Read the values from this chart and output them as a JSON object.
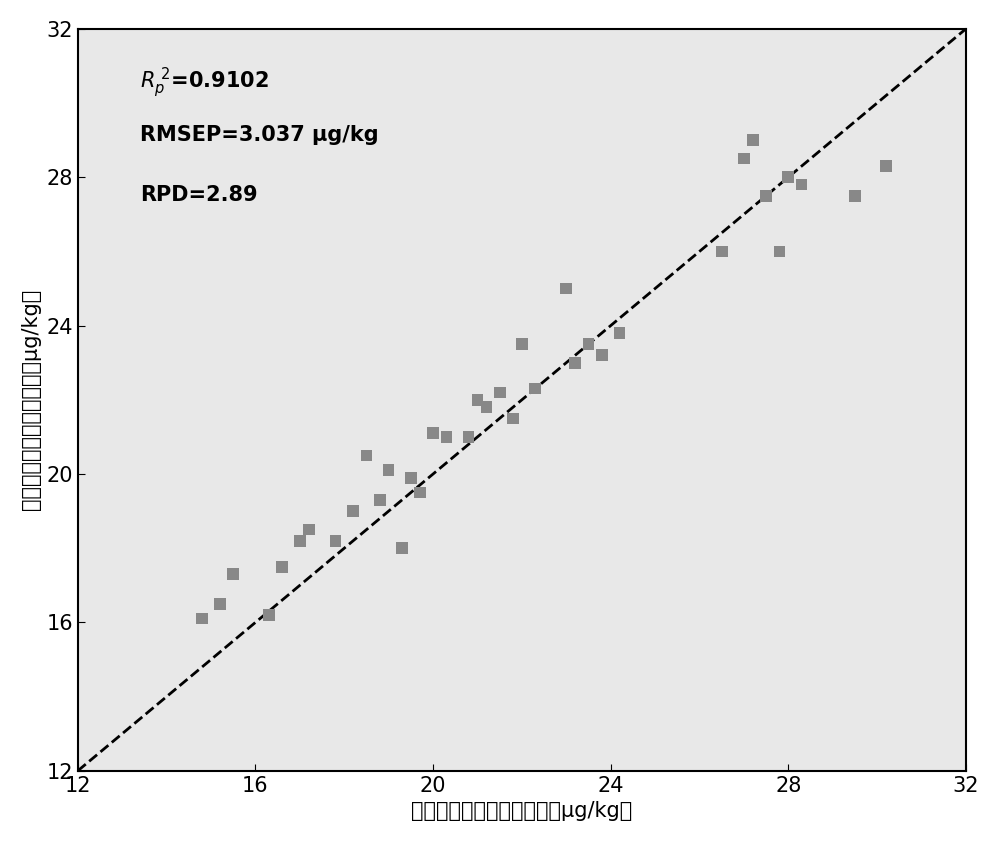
{
  "scatter_x": [
    14.8,
    15.2,
    15.5,
    16.3,
    16.6,
    17.0,
    17.2,
    17.8,
    18.2,
    18.5,
    18.8,
    19.0,
    19.3,
    19.5,
    19.7,
    20.0,
    20.3,
    20.8,
    21.0,
    21.2,
    21.5,
    21.8,
    22.0,
    22.3,
    23.0,
    23.2,
    23.5,
    23.8,
    24.2,
    26.5,
    27.0,
    27.2,
    27.5,
    27.8,
    28.0,
    28.3,
    29.5,
    30.2
  ],
  "scatter_y": [
    16.1,
    16.5,
    17.3,
    16.2,
    17.5,
    18.2,
    18.5,
    18.2,
    19.0,
    20.5,
    19.3,
    20.1,
    18.0,
    19.9,
    19.5,
    21.1,
    21.0,
    21.0,
    22.0,
    21.8,
    22.2,
    21.5,
    23.5,
    22.3,
    25.0,
    23.0,
    23.5,
    23.2,
    23.8,
    26.0,
    28.5,
    29.0,
    27.5,
    26.0,
    28.0,
    27.8,
    27.5,
    28.3
  ],
  "xlim": [
    12,
    32
  ],
  "ylim": [
    12,
    32
  ],
  "xticks": [
    12,
    16,
    20,
    24,
    28,
    32
  ],
  "yticks": [
    12,
    16,
    20,
    24,
    28,
    32
  ],
  "xlabel": "米糾阿拉伯糖含量真实值（μg/kg）",
  "ylabel": "米糾阿拉伯糖含量预测值（μg/kg）",
  "marker_color": "#888888",
  "marker_size": 70,
  "line_color": "#000000",
  "background_color": "#ffffff",
  "plot_bg_color": "#e8e8e8",
  "axis_fontsize": 15,
  "label_fontsize": 15,
  "annotation_fontsize": 15
}
